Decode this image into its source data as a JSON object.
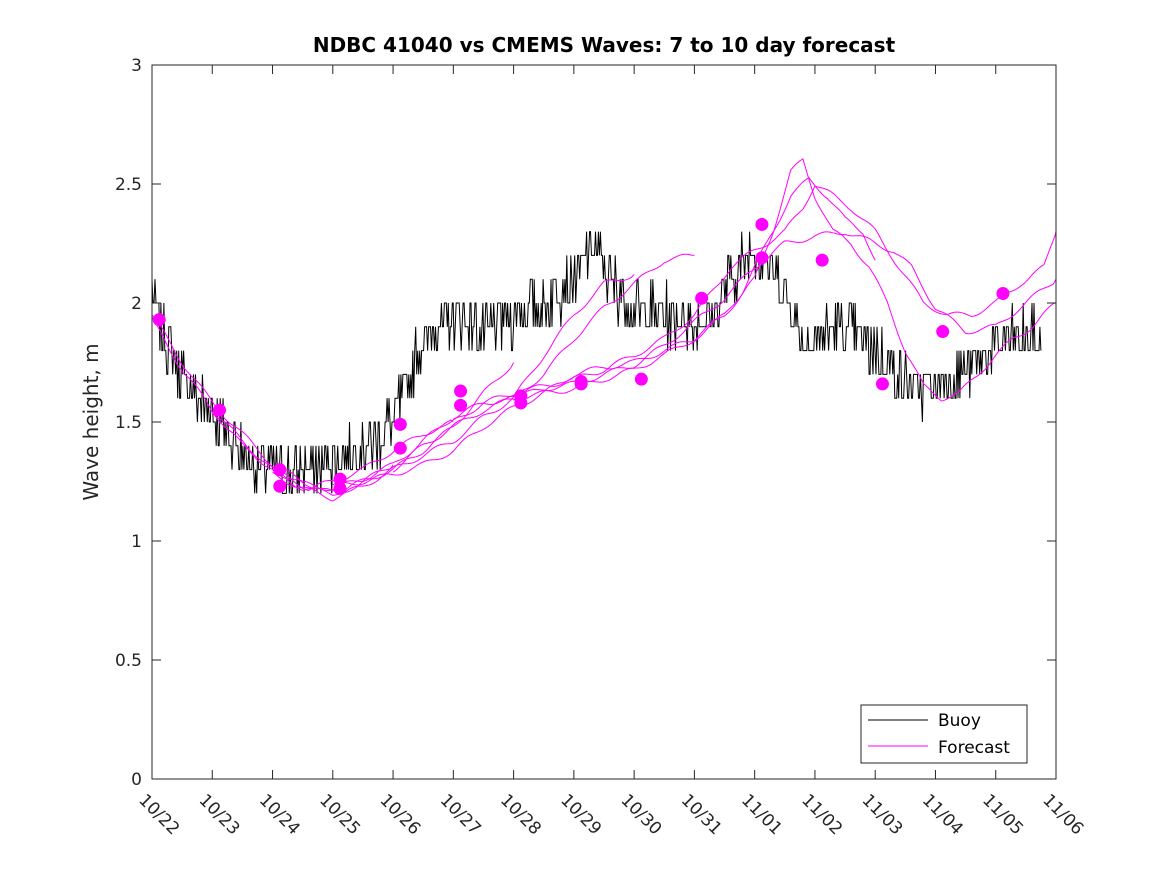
{
  "chart_data": {
    "type": "line",
    "title": "NDBC 41040 vs CMEMS Waves: 7 to 10 day forecast",
    "xlabel": "",
    "ylabel": "Wave height, m",
    "xlim": [
      0,
      15
    ],
    "ylim": [
      0,
      3
    ],
    "x_ticks": [
      "10/22",
      "10/23",
      "10/24",
      "10/25",
      "10/26",
      "10/27",
      "10/28",
      "10/29",
      "10/30",
      "10/31",
      "11/01",
      "11/02",
      "11/03",
      "11/04",
      "11/05",
      "11/06"
    ],
    "y_ticks": [
      0,
      0.5,
      1,
      1.5,
      2,
      2.5,
      3
    ],
    "y_tick_labels": [
      "0",
      "0.5",
      "1",
      "1.5",
      "2",
      "2.5",
      "3"
    ],
    "legend": {
      "location": "bottom-right",
      "entries": [
        "Buoy",
        "Forecast"
      ]
    },
    "colors": {
      "buoy": "#000000",
      "forecast": "#ff00ff",
      "axis": "#262626"
    },
    "buoy": {
      "name": "Buoy",
      "keypoints": [
        [
          0,
          2.05
        ],
        [
          0.15,
          1.9
        ],
        [
          0.4,
          1.75
        ],
        [
          0.7,
          1.6
        ],
        [
          1.0,
          1.55
        ],
        [
          1.3,
          1.42
        ],
        [
          1.6,
          1.35
        ],
        [
          1.9,
          1.3
        ],
        [
          2.2,
          1.28
        ],
        [
          2.5,
          1.3
        ],
        [
          2.8,
          1.33
        ],
        [
          3.1,
          1.35
        ],
        [
          3.4,
          1.38
        ],
        [
          3.7,
          1.42
        ],
        [
          4.0,
          1.5
        ],
        [
          4.2,
          1.65
        ],
        [
          4.4,
          1.8
        ],
        [
          4.7,
          1.9
        ],
        [
          5.0,
          1.95
        ],
        [
          5.5,
          1.88
        ],
        [
          6.0,
          1.95
        ],
        [
          6.5,
          2.0
        ],
        [
          7.0,
          2.1
        ],
        [
          7.3,
          2.25
        ],
        [
          7.6,
          2.1
        ],
        [
          8.0,
          1.98
        ],
        [
          8.5,
          1.95
        ],
        [
          9.0,
          1.92
        ],
        [
          9.3,
          1.95
        ],
        [
          9.6,
          2.1
        ],
        [
          10.0,
          2.25
        ],
        [
          10.4,
          2.1
        ],
        [
          10.8,
          1.85
        ],
        [
          11.3,
          1.88
        ],
        [
          11.8,
          1.85
        ],
        [
          12.2,
          1.75
        ],
        [
          12.6,
          1.65
        ],
        [
          13.0,
          1.65
        ],
        [
          13.4,
          1.7
        ],
        [
          13.8,
          1.78
        ],
        [
          14.2,
          1.85
        ],
        [
          14.5,
          1.85
        ],
        [
          14.75,
          1.85
        ]
      ]
    },
    "forecast_runs": [
      {
        "name": "Forecast",
        "points": [
          [
            0,
            1.95
          ],
          [
            0.5,
            1.75
          ],
          [
            1.0,
            1.58
          ],
          [
            1.5,
            1.45
          ],
          [
            2.0,
            1.32
          ],
          [
            2.5,
            1.25
          ],
          [
            3.0,
            1.2
          ],
          [
            3.2,
            1.21
          ],
          [
            3.5,
            1.25
          ],
          [
            4.0,
            1.32
          ]
        ]
      },
      {
        "name": "Forecast",
        "points": [
          [
            0,
            1.93
          ],
          [
            0.5,
            1.72
          ],
          [
            1.0,
            1.55
          ],
          [
            1.5,
            1.4
          ],
          [
            2.0,
            1.3
          ],
          [
            2.6,
            1.22
          ],
          [
            3.0,
            1.25
          ],
          [
            3.5,
            1.3
          ],
          [
            4.0,
            1.38
          ],
          [
            4.5,
            1.45
          ],
          [
            5.0,
            1.5
          ]
        ]
      },
      {
        "name": "Forecast",
        "points": [
          [
            1.0,
            1.55
          ],
          [
            1.5,
            1.42
          ],
          [
            2.0,
            1.3
          ],
          [
            2.5,
            1.22
          ],
          [
            3.0,
            1.2
          ],
          [
            3.5,
            1.25
          ],
          [
            4.0,
            1.3
          ],
          [
            4.5,
            1.38
          ],
          [
            5.0,
            1.48
          ],
          [
            5.5,
            1.62
          ],
          [
            6.0,
            1.75
          ]
        ]
      },
      {
        "name": "Forecast",
        "points": [
          [
            2.0,
            1.28
          ],
          [
            2.5,
            1.22
          ],
          [
            3.0,
            1.18
          ],
          [
            3.5,
            1.23
          ],
          [
            4.0,
            1.3
          ],
          [
            4.5,
            1.36
          ],
          [
            5.0,
            1.42
          ],
          [
            5.5,
            1.52
          ],
          [
            6.0,
            1.6
          ],
          [
            6.5,
            1.78
          ],
          [
            7.0,
            1.95
          ],
          [
            7.5,
            2.08
          ],
          [
            8.0,
            2.12
          ]
        ]
      },
      {
        "name": "Forecast",
        "points": [
          [
            2.0,
            1.3
          ],
          [
            2.5,
            1.24
          ],
          [
            3.0,
            1.22
          ],
          [
            3.5,
            1.26
          ],
          [
            4.0,
            1.32
          ],
          [
            4.5,
            1.42
          ],
          [
            5.0,
            1.52
          ],
          [
            5.5,
            1.58
          ],
          [
            6.0,
            1.6
          ],
          [
            6.5,
            1.7
          ],
          [
            7.0,
            1.85
          ],
          [
            7.5,
            1.98
          ],
          [
            8.0,
            2.08
          ],
          [
            8.5,
            2.18
          ],
          [
            9.0,
            2.2
          ]
        ]
      },
      {
        "name": "Forecast",
        "points": [
          [
            3.0,
            1.23
          ],
          [
            3.5,
            1.25
          ],
          [
            4.0,
            1.28
          ],
          [
            4.5,
            1.32
          ],
          [
            5.0,
            1.38
          ],
          [
            5.5,
            1.48
          ],
          [
            6.0,
            1.56
          ],
          [
            6.5,
            1.62
          ],
          [
            7.0,
            1.7
          ],
          [
            7.5,
            1.73
          ],
          [
            8.0,
            1.75
          ],
          [
            8.5,
            1.8
          ],
          [
            9.0,
            1.85
          ],
          [
            9.5,
            1.95
          ],
          [
            9.8,
            2.05
          ],
          [
            10.0,
            2.15
          ],
          [
            10.3,
            2.3
          ],
          [
            10.6,
            2.45
          ],
          [
            10.9,
            2.52
          ],
          [
            11.2,
            2.45
          ],
          [
            11.5,
            2.35
          ],
          [
            11.8,
            2.3
          ],
          [
            12.0,
            2.18
          ]
        ]
      },
      {
        "name": "Forecast",
        "points": [
          [
            4.0,
            1.3
          ],
          [
            4.5,
            1.4
          ],
          [
            5.0,
            1.48
          ],
          [
            5.5,
            1.55
          ],
          [
            6.0,
            1.6
          ],
          [
            6.5,
            1.62
          ],
          [
            7.0,
            1.64
          ],
          [
            7.5,
            1.68
          ],
          [
            8.0,
            1.72
          ],
          [
            8.5,
            1.78
          ],
          [
            9.0,
            1.85
          ],
          [
            9.5,
            1.95
          ],
          [
            10.0,
            2.1
          ],
          [
            10.3,
            2.3
          ],
          [
            10.6,
            2.55
          ],
          [
            10.8,
            2.6
          ],
          [
            11.0,
            2.45
          ],
          [
            11.3,
            2.3
          ],
          [
            11.6,
            2.25
          ],
          [
            11.9,
            2.15
          ],
          [
            12.2,
            2.0
          ],
          [
            12.5,
            1.8
          ],
          [
            12.8,
            1.65
          ],
          [
            13.1,
            1.6
          ],
          [
            13.4,
            1.62
          ],
          [
            13.7,
            1.7
          ],
          [
            14.0,
            1.78
          ],
          [
            14.3,
            1.85
          ],
          [
            14.6,
            1.9
          ],
          [
            15.0,
            2.0
          ]
        ]
      },
      {
        "name": "Forecast",
        "points": [
          [
            5.0,
            1.5
          ],
          [
            5.5,
            1.58
          ],
          [
            6.0,
            1.62
          ],
          [
            6.5,
            1.65
          ],
          [
            7.0,
            1.68
          ],
          [
            7.5,
            1.72
          ],
          [
            8.0,
            1.78
          ],
          [
            8.5,
            1.85
          ],
          [
            9.0,
            1.95
          ],
          [
            9.3,
            2.05
          ],
          [
            9.6,
            2.15
          ],
          [
            10.0,
            2.22
          ],
          [
            10.5,
            2.3
          ],
          [
            10.8,
            2.4
          ],
          [
            11.0,
            2.5
          ],
          [
            11.3,
            2.45
          ],
          [
            11.6,
            2.4
          ],
          [
            12.0,
            2.3
          ],
          [
            12.4,
            2.15
          ],
          [
            12.8,
            2.0
          ],
          [
            13.2,
            1.95
          ],
          [
            13.6,
            1.95
          ],
          [
            14.0,
            2.0
          ],
          [
            14.4,
            2.08
          ],
          [
            14.8,
            2.15
          ],
          [
            15.0,
            2.3
          ]
        ]
      },
      {
        "name": "Forecast",
        "points": [
          [
            6.0,
            1.6
          ],
          [
            6.5,
            1.64
          ],
          [
            7.0,
            1.66
          ],
          [
            7.5,
            1.7
          ],
          [
            8.0,
            1.74
          ],
          [
            8.5,
            1.82
          ],
          [
            9.0,
            1.92
          ],
          [
            9.5,
            2.02
          ],
          [
            10.0,
            2.15
          ],
          [
            10.5,
            2.25
          ],
          [
            11.0,
            2.28
          ],
          [
            11.5,
            2.3
          ],
          [
            12.0,
            2.25
          ],
          [
            12.3,
            2.22
          ],
          [
            12.6,
            2.15
          ],
          [
            13.0,
            1.98
          ],
          [
            13.5,
            1.88
          ],
          [
            14.0,
            1.9
          ],
          [
            14.5,
            2.0
          ],
          [
            15.0,
            2.1
          ]
        ]
      }
    ],
    "forecast_markers": [
      [
        0.12,
        1.93
      ],
      [
        1.12,
        1.55
      ],
      [
        2.12,
        1.3
      ],
      [
        2.12,
        1.23
      ],
      [
        3.12,
        1.26
      ],
      [
        3.12,
        1.22
      ],
      [
        4.12,
        1.49
      ],
      [
        4.12,
        1.39
      ],
      [
        5.12,
        1.63
      ],
      [
        5.12,
        1.57
      ],
      [
        6.12,
        1.61
      ],
      [
        6.12,
        1.58
      ],
      [
        7.12,
        1.67
      ],
      [
        7.12,
        1.66
      ],
      [
        8.12,
        1.68
      ],
      [
        9.12,
        2.02
      ],
      [
        10.12,
        2.33
      ],
      [
        10.12,
        2.19
      ],
      [
        11.12,
        2.18
      ],
      [
        12.12,
        1.66
      ],
      [
        13.12,
        1.88
      ],
      [
        14.12,
        2.04
      ]
    ]
  }
}
